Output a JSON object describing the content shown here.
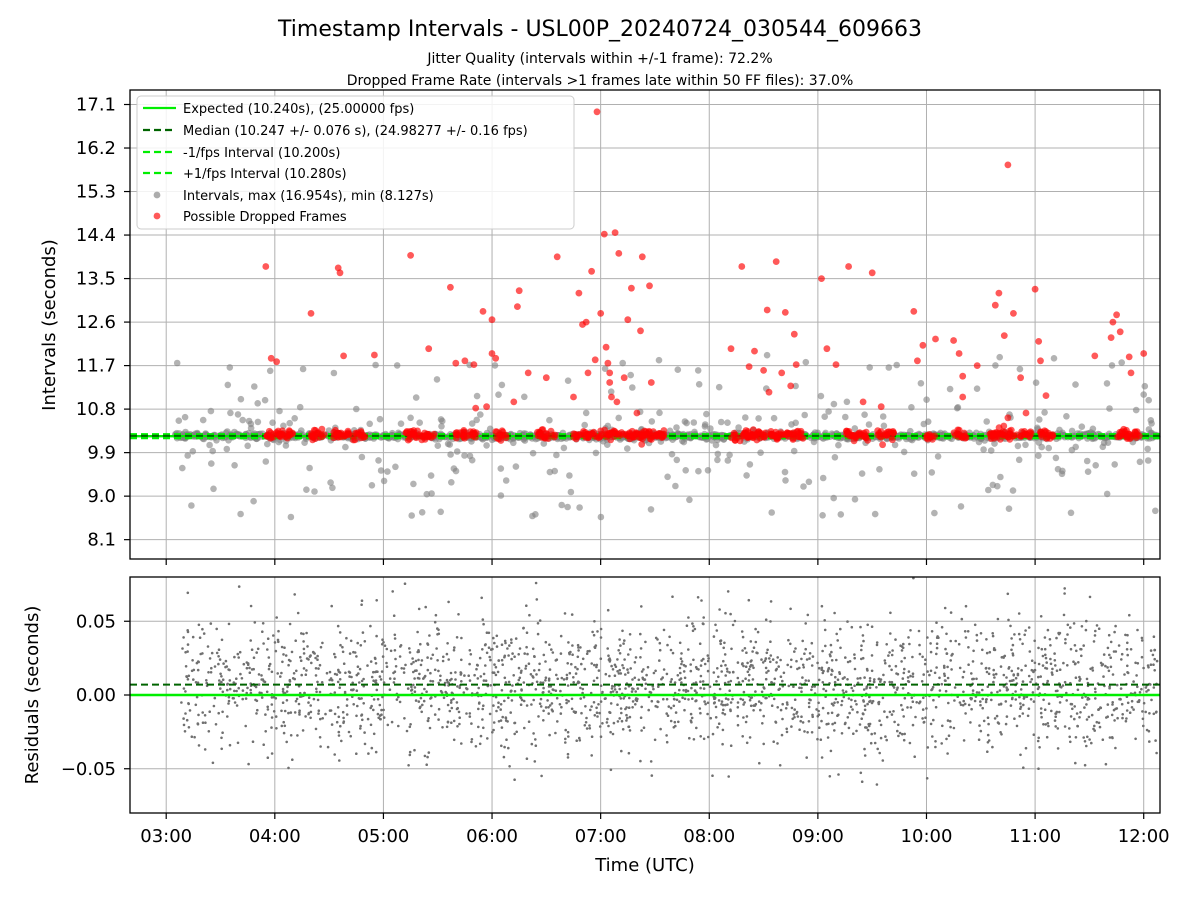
{
  "chart_data": {
    "type": "scatter",
    "title": "Timestamp Intervals - USL00P_20240724_030544_609663",
    "subtitle_1": "Jitter Quality (intervals within +/-1 frame): 72.2%",
    "subtitle_2": "Dropped Frame Rate (intervals >1 frames late within 50 FF files): 37.0%",
    "xlabel": "Time (UTC)",
    "x_range": [
      "02:40",
      "12:09"
    ],
    "x_ticks": [
      "03:00",
      "04:00",
      "05:00",
      "06:00",
      "07:00",
      "08:00",
      "09:00",
      "10:00",
      "11:00",
      "12:00"
    ],
    "top_panel": {
      "ylabel": "Intervals (seconds)",
      "ylim": [
        7.7,
        17.4
      ],
      "y_ticks": [
        "8.1",
        "9.0",
        "9.9",
        "10.8",
        "11.7",
        "12.6",
        "13.5",
        "14.4",
        "15.3",
        "16.2",
        "17.1"
      ],
      "grid": true,
      "legend_position": "top-left",
      "legend": [
        "Expected (10.240s), (25.00000 fps)",
        "Median (10.247 +/- 0.076 s), (24.98277 +/- 0.16 fps)",
        "-1/fps Interval (10.200s)",
        "+1/fps Interval (10.280s)",
        "Intervals, max (16.954s), min (8.127s)",
        "Possible Dropped Frames"
      ],
      "lines": {
        "expected": 10.24,
        "median": 10.247,
        "minus_one_fps": 10.2,
        "plus_one_fps": 10.28
      },
      "intervals_max": 16.954,
      "intervals_min": 8.127,
      "dropped_frames": [
        {
          "x": "03:55",
          "y": 13.75
        },
        {
          "x": "03:58",
          "y": 11.85
        },
        {
          "x": "04:01",
          "y": 11.78
        },
        {
          "x": "04:20",
          "y": 12.78
        },
        {
          "x": "04:35",
          "y": 13.72
        },
        {
          "x": "04:36",
          "y": 13.62
        },
        {
          "x": "04:38",
          "y": 11.9
        },
        {
          "x": "04:55",
          "y": 11.92
        },
        {
          "x": "05:15",
          "y": 13.98
        },
        {
          "x": "05:25",
          "y": 12.05
        },
        {
          "x": "05:37",
          "y": 13.32
        },
        {
          "x": "05:40",
          "y": 11.75
        },
        {
          "x": "05:45",
          "y": 11.8
        },
        {
          "x": "05:50",
          "y": 11.72
        },
        {
          "x": "05:51",
          "y": 10.82
        },
        {
          "x": "05:55",
          "y": 12.82
        },
        {
          "x": "05:57",
          "y": 10.85
        },
        {
          "x": "06:00",
          "y": 12.65
        },
        {
          "x": "06:00",
          "y": 11.95
        },
        {
          "x": "06:02",
          "y": 11.85
        },
        {
          "x": "06:14",
          "y": 12.92
        },
        {
          "x": "06:15",
          "y": 13.25
        },
        {
          "x": "06:12",
          "y": 10.95
        },
        {
          "x": "06:20",
          "y": 11.55
        },
        {
          "x": "06:30",
          "y": 11.45
        },
        {
          "x": "06:36",
          "y": 13.95
        },
        {
          "x": "06:45",
          "y": 11.05
        },
        {
          "x": "06:48",
          "y": 13.2
        },
        {
          "x": "06:50",
          "y": 12.55
        },
        {
          "x": "06:52",
          "y": 12.6
        },
        {
          "x": "06:53",
          "y": 11.55
        },
        {
          "x": "06:55",
          "y": 13.65
        },
        {
          "x": "06:57",
          "y": 11.82
        },
        {
          "x": "06:58",
          "y": 16.95
        },
        {
          "x": "07:00",
          "y": 12.78
        },
        {
          "x": "07:02",
          "y": 14.42
        },
        {
          "x": "07:03",
          "y": 12.08
        },
        {
          "x": "07:04",
          "y": 11.75
        },
        {
          "x": "07:05",
          "y": 11.35
        },
        {
          "x": "07:06",
          "y": 11.05
        },
        {
          "x": "07:05",
          "y": 11.55
        },
        {
          "x": "07:08",
          "y": 14.45
        },
        {
          "x": "07:09",
          "y": 10.95
        },
        {
          "x": "07:10",
          "y": 14.02
        },
        {
          "x": "07:13",
          "y": 11.45
        },
        {
          "x": "07:15",
          "y": 12.65
        },
        {
          "x": "07:17",
          "y": 13.3
        },
        {
          "x": "07:20",
          "y": 10.72
        },
        {
          "x": "07:22",
          "y": 12.42
        },
        {
          "x": "07:23",
          "y": 13.95
        },
        {
          "x": "07:27",
          "y": 13.35
        },
        {
          "x": "07:28",
          "y": 11.35
        },
        {
          "x": "08:18",
          "y": 13.75
        },
        {
          "x": "08:12",
          "y": 12.05
        },
        {
          "x": "08:22",
          "y": 11.68
        },
        {
          "x": "08:25",
          "y": 12.0
        },
        {
          "x": "08:30",
          "y": 11.6
        },
        {
          "x": "08:32",
          "y": 12.85
        },
        {
          "x": "08:33",
          "y": 11.15
        },
        {
          "x": "08:37",
          "y": 13.85
        },
        {
          "x": "08:40",
          "y": 11.55
        },
        {
          "x": "08:42",
          "y": 12.8
        },
        {
          "x": "08:45",
          "y": 11.28
        },
        {
          "x": "08:47",
          "y": 12.35
        },
        {
          "x": "08:48",
          "y": 11.72
        },
        {
          "x": "09:02",
          "y": 13.5
        },
        {
          "x": "09:05",
          "y": 12.05
        },
        {
          "x": "09:10",
          "y": 11.72
        },
        {
          "x": "09:17",
          "y": 13.75
        },
        {
          "x": "09:25",
          "y": 10.95
        },
        {
          "x": "09:30",
          "y": 13.62
        },
        {
          "x": "09:35",
          "y": 10.85
        },
        {
          "x": "09:53",
          "y": 12.82
        },
        {
          "x": "09:55",
          "y": 11.8
        },
        {
          "x": "09:58",
          "y": 12.12
        },
        {
          "x": "10:05",
          "y": 12.25
        },
        {
          "x": "10:15",
          "y": 12.22
        },
        {
          "x": "10:18",
          "y": 11.95
        },
        {
          "x": "10:20",
          "y": 11.48
        },
        {
          "x": "10:20",
          "y": 11.05
        },
        {
          "x": "10:28",
          "y": 11.7
        },
        {
          "x": "10:38",
          "y": 12.95
        },
        {
          "x": "10:40",
          "y": 13.2
        },
        {
          "x": "10:43",
          "y": 12.32
        },
        {
          "x": "10:45",
          "y": 10.62
        },
        {
          "x": "10:48",
          "y": 12.78
        },
        {
          "x": "10:52",
          "y": 11.45
        },
        {
          "x": "10:55",
          "y": 10.72
        },
        {
          "x": "11:00",
          "y": 13.28
        },
        {
          "x": "11:02",
          "y": 12.2
        },
        {
          "x": "11:03",
          "y": 11.8
        },
        {
          "x": "11:06",
          "y": 11.08
        },
        {
          "x": "11:33",
          "y": 11.9
        },
        {
          "x": "11:42",
          "y": 12.28
        },
        {
          "x": "11:43",
          "y": 12.6
        },
        {
          "x": "11:45",
          "y": 12.75
        },
        {
          "x": "11:47",
          "y": 12.4
        },
        {
          "x": "11:52",
          "y": 11.88
        },
        {
          "x": "11:53",
          "y": 11.55
        },
        {
          "x": "12:00",
          "y": 11.95
        },
        {
          "x": "10:45",
          "y": 15.85
        }
      ]
    },
    "bottom_panel": {
      "ylabel": "Residuals (seconds)",
      "ylim": [
        -0.08,
        0.08
      ],
      "y_ticks": [
        "−0.05",
        "0.00",
        "0.05"
      ],
      "grid": true,
      "expected_residual": 0.0,
      "median_residual": 0.007
    }
  }
}
